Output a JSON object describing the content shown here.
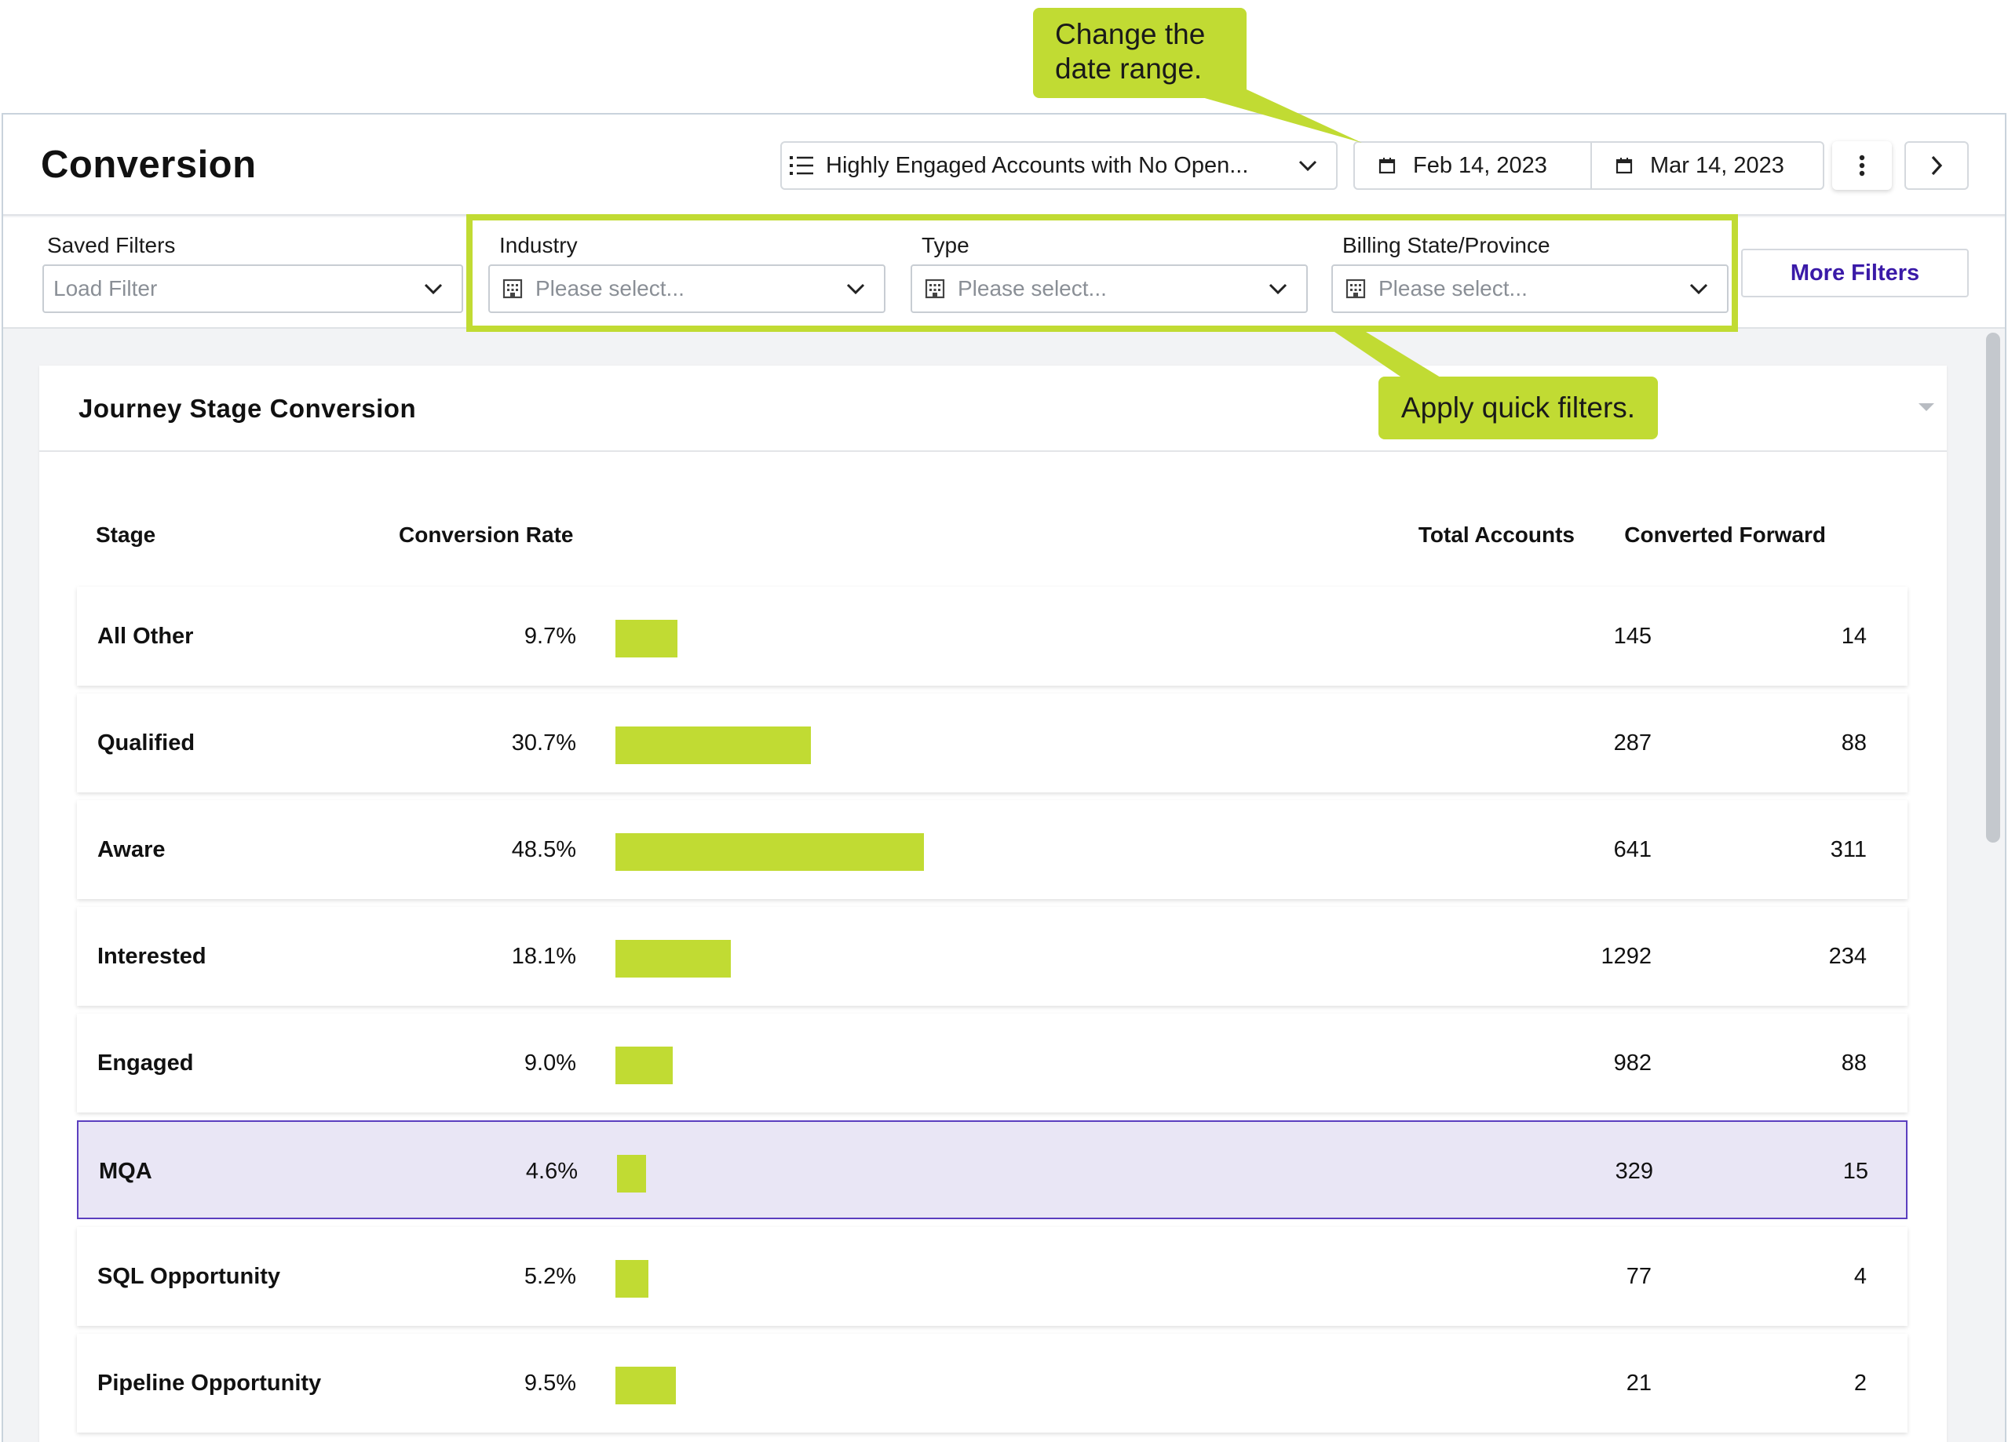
{
  "header": {
    "title": "Conversion",
    "segment_label": "Highly Engaged Accounts with No Open...",
    "start_date": "Feb 14, 2023",
    "end_date": "Mar 14, 2023"
  },
  "filters": {
    "saved": {
      "label": "Saved Filters",
      "placeholder": "Load Filter"
    },
    "industry": {
      "label": "Industry",
      "placeholder": "Please select..."
    },
    "type": {
      "label": "Type",
      "placeholder": "Please select..."
    },
    "billing": {
      "label": "Billing State/Province",
      "placeholder": "Please select..."
    },
    "more_label": "More Filters"
  },
  "card": {
    "title": "Journey Stage Conversion",
    "columns": {
      "stage": "Stage",
      "rate": "Conversion Rate",
      "total": "Total Accounts",
      "converted": "Converted Forward"
    },
    "rows": [
      {
        "stage": "All Other",
        "rate": "9.7%",
        "rate_value": 9.7,
        "total": "145",
        "converted": "14",
        "selected": false
      },
      {
        "stage": "Qualified",
        "rate": "30.7%",
        "rate_value": 30.7,
        "total": "287",
        "converted": "88",
        "selected": false
      },
      {
        "stage": "Aware",
        "rate": "48.5%",
        "rate_value": 48.5,
        "total": "641",
        "converted": "311",
        "selected": false
      },
      {
        "stage": "Interested",
        "rate": "18.1%",
        "rate_value": 18.1,
        "total": "1292",
        "converted": "234",
        "selected": false
      },
      {
        "stage": "Engaged",
        "rate": "9.0%",
        "rate_value": 9.0,
        "total": "982",
        "converted": "88",
        "selected": false
      },
      {
        "stage": "MQA",
        "rate": "4.6%",
        "rate_value": 4.6,
        "total": "329",
        "converted": "15",
        "selected": true
      },
      {
        "stage": "SQL Opportunity",
        "rate": "5.2%",
        "rate_value": 5.2,
        "total": "77",
        "converted": "4",
        "selected": false
      },
      {
        "stage": "Pipeline Opportunity",
        "rate": "9.5%",
        "rate_value": 9.5,
        "total": "21",
        "converted": "2",
        "selected": false
      }
    ]
  },
  "annotations": {
    "date_callout": [
      "Change the",
      "date range."
    ],
    "filter_callout": "Apply quick filters."
  },
  "colors": {
    "accent": "#c1db33",
    "selected_row": "#e9e6f5",
    "selected_border": "#5b3fbf",
    "link": "#3a1aa8"
  },
  "icons": {
    "segment": "list-icon",
    "date": "calendar-icon",
    "filter": "building-icon",
    "menu": "kebab-icon",
    "next": "chevron-right-icon"
  }
}
